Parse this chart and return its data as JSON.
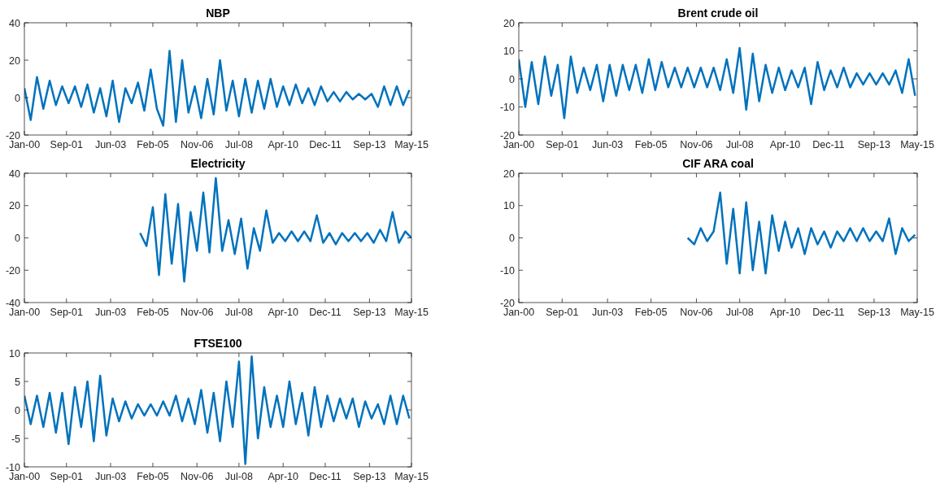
{
  "chart_data": [
    {
      "type": "line",
      "title": "NBP",
      "color": "#0072bd",
      "xlim": [
        "2000-01",
        "2015-05"
      ],
      "ylim": [
        -20,
        40
      ],
      "yticks": [
        -20,
        0,
        20,
        40
      ],
      "xticks": [
        {
          "value": "2000-01",
          "label": "Jan-00"
        },
        {
          "value": "2001-09",
          "label": "Sep-01"
        },
        {
          "value": "2003-06",
          "label": "Jun-03"
        },
        {
          "value": "2005-02",
          "label": "Feb-05"
        },
        {
          "value": "2006-11",
          "label": "Nov-06"
        },
        {
          "value": "2008-07",
          "label": "Jul-08"
        },
        {
          "value": "2010-04",
          "label": "Apr-10"
        },
        {
          "value": "2011-12",
          "label": "Dec-11"
        },
        {
          "value": "2013-09",
          "label": "Sep-13"
        },
        {
          "value": "2015-05",
          "label": "May-15"
        }
      ],
      "x": [
        "2000-01",
        "2000-04",
        "2000-07",
        "2000-10",
        "2001-01",
        "2001-04",
        "2001-07",
        "2001-10",
        "2002-01",
        "2002-04",
        "2002-07",
        "2002-10",
        "2003-01",
        "2003-04",
        "2003-07",
        "2003-10",
        "2004-01",
        "2004-04",
        "2004-07",
        "2004-10",
        "2005-01",
        "2005-04",
        "2005-07",
        "2005-10",
        "2006-01",
        "2006-04",
        "2006-07",
        "2006-10",
        "2007-01",
        "2007-04",
        "2007-07",
        "2007-10",
        "2008-01",
        "2008-04",
        "2008-07",
        "2008-10",
        "2009-01",
        "2009-04",
        "2009-07",
        "2009-10",
        "2010-01",
        "2010-04",
        "2010-07",
        "2010-10",
        "2011-01",
        "2011-04",
        "2011-07",
        "2011-10",
        "2012-01",
        "2012-04",
        "2012-07",
        "2012-10",
        "2013-01",
        "2013-04",
        "2013-07",
        "2013-10",
        "2014-01",
        "2014-04",
        "2014-07",
        "2014-10",
        "2015-01",
        "2015-04"
      ],
      "values": [
        5,
        -12,
        11,
        -6,
        9,
        -4,
        6,
        -3,
        6,
        -5,
        7,
        -8,
        5,
        -10,
        9,
        -13,
        5,
        -3,
        8,
        -7,
        15,
        -6,
        -15,
        25,
        -13,
        20,
        -8,
        6,
        -11,
        10,
        -9,
        20,
        -7,
        9,
        -10,
        10,
        -8,
        9,
        -6,
        10,
        -5,
        6,
        -4,
        7,
        -3,
        5,
        -4,
        6,
        -2,
        3,
        -2,
        3,
        -1,
        2,
        -1,
        2,
        -5,
        6,
        -4,
        6,
        -4,
        4
      ]
    },
    {
      "type": "line",
      "title": "Brent crude oil",
      "color": "#0072bd",
      "xlim": [
        "2000-01",
        "2015-05"
      ],
      "ylim": [
        -20,
        20
      ],
      "yticks": [
        -20,
        -10,
        0,
        10,
        20
      ],
      "xticks": [
        {
          "value": "2000-01",
          "label": "Jan-00"
        },
        {
          "value": "2001-09",
          "label": "Sep-01"
        },
        {
          "value": "2003-06",
          "label": "Jun-03"
        },
        {
          "value": "2005-02",
          "label": "Feb-05"
        },
        {
          "value": "2006-11",
          "label": "Nov-06"
        },
        {
          "value": "2008-07",
          "label": "Jul-08"
        },
        {
          "value": "2010-04",
          "label": "Apr-10"
        },
        {
          "value": "2011-12",
          "label": "Dec-11"
        },
        {
          "value": "2013-09",
          "label": "Sep-13"
        },
        {
          "value": "2015-05",
          "label": "May-15"
        }
      ],
      "x": [
        "2000-01",
        "2000-04",
        "2000-07",
        "2000-10",
        "2001-01",
        "2001-04",
        "2001-07",
        "2001-10",
        "2002-01",
        "2002-04",
        "2002-07",
        "2002-10",
        "2003-01",
        "2003-04",
        "2003-07",
        "2003-10",
        "2004-01",
        "2004-04",
        "2004-07",
        "2004-10",
        "2005-01",
        "2005-04",
        "2005-07",
        "2005-10",
        "2006-01",
        "2006-04",
        "2006-07",
        "2006-10",
        "2007-01",
        "2007-04",
        "2007-07",
        "2007-10",
        "2008-01",
        "2008-04",
        "2008-07",
        "2008-10",
        "2009-01",
        "2009-04",
        "2009-07",
        "2009-10",
        "2010-01",
        "2010-04",
        "2010-07",
        "2010-10",
        "2011-01",
        "2011-04",
        "2011-07",
        "2011-10",
        "2012-01",
        "2012-04",
        "2012-07",
        "2012-10",
        "2013-01",
        "2013-04",
        "2013-07",
        "2013-10",
        "2014-01",
        "2014-04",
        "2014-07",
        "2014-10",
        "2015-01",
        "2015-04"
      ],
      "values": [
        7,
        -10,
        6,
        -9,
        8,
        -6,
        5,
        -14,
        8,
        -5,
        4,
        -4,
        5,
        -8,
        5,
        -6,
        5,
        -4,
        5,
        -5,
        7,
        -4,
        6,
        -3,
        4,
        -3,
        4,
        -3,
        4,
        -3,
        4,
        -4,
        7,
        -5,
        11,
        -11,
        9,
        -8,
        5,
        -5,
        4,
        -4,
        3,
        -3,
        4,
        -9,
        6,
        -4,
        3,
        -3,
        4,
        -3,
        2,
        -2,
        2,
        -2,
        2,
        -2,
        3,
        -5,
        7,
        -6
      ]
    },
    {
      "type": "line",
      "title": "Electricity",
      "color": "#0072bd",
      "xlim": [
        "2000-01",
        "2015-05"
      ],
      "ylim": [
        -40,
        40
      ],
      "yticks": [
        -40,
        -20,
        0,
        20,
        40
      ],
      "xticks": [
        {
          "value": "2000-01",
          "label": "Jan-00"
        },
        {
          "value": "2001-09",
          "label": "Sep-01"
        },
        {
          "value": "2003-06",
          "label": "Jun-03"
        },
        {
          "value": "2005-02",
          "label": "Feb-05"
        },
        {
          "value": "2006-11",
          "label": "Nov-06"
        },
        {
          "value": "2008-07",
          "label": "Jul-08"
        },
        {
          "value": "2010-04",
          "label": "Apr-10"
        },
        {
          "value": "2011-12",
          "label": "Dec-11"
        },
        {
          "value": "2013-09",
          "label": "Sep-13"
        },
        {
          "value": "2015-05",
          "label": "May-15"
        }
      ],
      "x": [
        "2004-08",
        "2004-11",
        "2005-02",
        "2005-05",
        "2005-08",
        "2005-11",
        "2006-02",
        "2006-05",
        "2006-08",
        "2006-11",
        "2007-02",
        "2007-05",
        "2007-08",
        "2007-11",
        "2008-02",
        "2008-05",
        "2008-08",
        "2008-11",
        "2009-02",
        "2009-05",
        "2009-08",
        "2009-11",
        "2010-02",
        "2010-05",
        "2010-08",
        "2010-11",
        "2011-02",
        "2011-05",
        "2011-08",
        "2011-11",
        "2012-02",
        "2012-05",
        "2012-08",
        "2012-11",
        "2013-02",
        "2013-05",
        "2013-08",
        "2013-11",
        "2014-02",
        "2014-05",
        "2014-08",
        "2014-11",
        "2015-02",
        "2015-05"
      ],
      "values": [
        3,
        -5,
        19,
        -23,
        27,
        -16,
        21,
        -27,
        16,
        -8,
        28,
        -9,
        37,
        -8,
        11,
        -10,
        12,
        -19,
        6,
        -8,
        17,
        -3,
        3,
        -2,
        4,
        -2,
        4,
        -2,
        14,
        -3,
        3,
        -4,
        3,
        -2,
        3,
        -2,
        3,
        -3,
        5,
        -2,
        16,
        -3,
        4,
        0
      ]
    },
    {
      "type": "line",
      "title": "CIF ARA coal",
      "color": "#0072bd",
      "xlim": [
        "2000-01",
        "2015-05"
      ],
      "ylim": [
        -20,
        20
      ],
      "yticks": [
        -20,
        -10,
        0,
        10,
        20
      ],
      "xticks": [
        {
          "value": "2000-01",
          "label": "Jan-00"
        },
        {
          "value": "2001-09",
          "label": "Sep-01"
        },
        {
          "value": "2003-06",
          "label": "Jun-03"
        },
        {
          "value": "2005-02",
          "label": "Feb-05"
        },
        {
          "value": "2006-11",
          "label": "Nov-06"
        },
        {
          "value": "2008-07",
          "label": "Jul-08"
        },
        {
          "value": "2010-04",
          "label": "Apr-10"
        },
        {
          "value": "2011-12",
          "label": "Dec-11"
        },
        {
          "value": "2013-09",
          "label": "Sep-13"
        },
        {
          "value": "2015-05",
          "label": "May-15"
        }
      ],
      "x": [
        "2006-07",
        "2006-10",
        "2007-01",
        "2007-04",
        "2007-07",
        "2007-10",
        "2008-01",
        "2008-04",
        "2008-07",
        "2008-10",
        "2009-01",
        "2009-04",
        "2009-07",
        "2009-10",
        "2010-01",
        "2010-04",
        "2010-07",
        "2010-10",
        "2011-01",
        "2011-04",
        "2011-07",
        "2011-10",
        "2012-01",
        "2012-04",
        "2012-07",
        "2012-10",
        "2013-01",
        "2013-04",
        "2013-07",
        "2013-10",
        "2014-01",
        "2014-04",
        "2014-07",
        "2014-10",
        "2015-01",
        "2015-04"
      ],
      "values": [
        0,
        -2,
        3,
        -1,
        2,
        14,
        -8,
        9,
        -11,
        11,
        -10,
        5,
        -11,
        7,
        -4,
        5,
        -3,
        3,
        -5,
        3,
        -2,
        2,
        -3,
        2,
        -1,
        3,
        -1,
        3,
        -1,
        2,
        -1,
        6,
        -5,
        3,
        -1,
        1
      ]
    },
    {
      "type": "line",
      "title": "FTSE100",
      "color": "#0072bd",
      "xlim": [
        "2000-01",
        "2015-05"
      ],
      "ylim": [
        -10,
        10
      ],
      "yticks": [
        -10,
        -5,
        0,
        5,
        10
      ],
      "xticks": [
        {
          "value": "2000-01",
          "label": "Jan-00"
        },
        {
          "value": "2001-09",
          "label": "Sep-01"
        },
        {
          "value": "2003-06",
          "label": "Jun-03"
        },
        {
          "value": "2005-02",
          "label": "Feb-05"
        },
        {
          "value": "2006-11",
          "label": "Nov-06"
        },
        {
          "value": "2008-07",
          "label": "Jul-08"
        },
        {
          "value": "2010-04",
          "label": "Apr-10"
        },
        {
          "value": "2011-12",
          "label": "Dec-11"
        },
        {
          "value": "2013-09",
          "label": "Sep-13"
        },
        {
          "value": "2015-05",
          "label": "May-15"
        }
      ],
      "x": [
        "2000-01",
        "2000-04",
        "2000-07",
        "2000-10",
        "2001-01",
        "2001-04",
        "2001-07",
        "2001-10",
        "2002-01",
        "2002-04",
        "2002-07",
        "2002-10",
        "2003-01",
        "2003-04",
        "2003-07",
        "2003-10",
        "2004-01",
        "2004-04",
        "2004-07",
        "2004-10",
        "2005-01",
        "2005-04",
        "2005-07",
        "2005-10",
        "2006-01",
        "2006-04",
        "2006-07",
        "2006-10",
        "2007-01",
        "2007-04",
        "2007-07",
        "2007-10",
        "2008-01",
        "2008-04",
        "2008-07",
        "2008-10",
        "2009-01",
        "2009-04",
        "2009-07",
        "2009-10",
        "2010-01",
        "2010-04",
        "2010-07",
        "2010-10",
        "2011-01",
        "2011-04",
        "2011-07",
        "2011-10",
        "2012-01",
        "2012-04",
        "2012-07",
        "2012-10",
        "2013-01",
        "2013-04",
        "2013-07",
        "2013-10",
        "2014-01",
        "2014-04",
        "2014-07",
        "2014-10",
        "2015-01",
        "2015-04"
      ],
      "values": [
        2.5,
        -2.5,
        2.5,
        -3,
        3,
        -4,
        3,
        -6,
        4,
        -3,
        5,
        -5.5,
        6,
        -4.5,
        2,
        -2,
        1.5,
        -1.5,
        1,
        -1,
        1,
        -1,
        1.5,
        -1,
        2.5,
        -2,
        2,
        -2.5,
        3.5,
        -4,
        3,
        -5.5,
        5,
        -3,
        8.5,
        -9.5,
        9.4,
        -5,
        4,
        -3,
        2.5,
        -3,
        5,
        -2.5,
        3,
        -4.5,
        4,
        -3,
        2.5,
        -2,
        2,
        -1.5,
        2,
        -3,
        1.5,
        -1.5,
        1,
        -2.5,
        2.5,
        -2.5,
        2.5,
        -1.5
      ]
    }
  ]
}
